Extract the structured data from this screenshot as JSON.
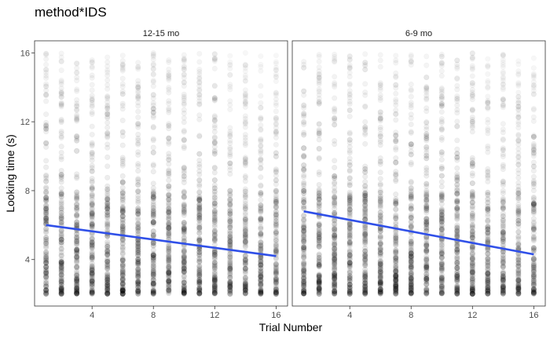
{
  "chart_data": {
    "type": "scatter",
    "title": "method*IDS",
    "xlabel": "Trial Number",
    "ylabel": "Looking time (s)",
    "xlim": [
      0.25,
      16.75
    ],
    "ylim": [
      1.3,
      16.7
    ],
    "x_ticks": [
      4,
      8,
      12,
      16
    ],
    "y_ticks": [
      4,
      8,
      12,
      16
    ],
    "grid": false,
    "legend": "none",
    "colors": {
      "points": "#000000",
      "fit": "#3050e8",
      "panel_border": "#333333",
      "tick": "#333333"
    },
    "point_distribution": {
      "trials": [
        1,
        2,
        3,
        4,
        5,
        6,
        7,
        8,
        9,
        10,
        11,
        12,
        13,
        14,
        15,
        16
      ],
      "y_min": 2,
      "y_max": 16
    },
    "panels": [
      {
        "strip": "12-15 mo",
        "trend": {
          "x": [
            1,
            16
          ],
          "y": [
            6.0,
            4.2
          ]
        }
      },
      {
        "strip": "6-9 mo",
        "trend": {
          "x": [
            1,
            16
          ],
          "y": [
            6.8,
            4.3
          ]
        }
      }
    ]
  }
}
